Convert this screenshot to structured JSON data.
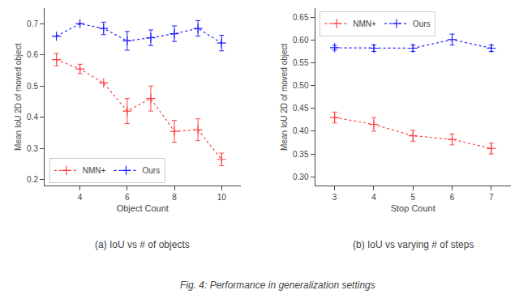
{
  "title": "Fig. 4: Performance in generalization settings",
  "chart_data": [
    {
      "type": "line",
      "title": "(a) IoU vs # of objects",
      "xlabel": "Object Count",
      "ylabel": "Mean IoU 2D of moved object",
      "x": [
        3,
        4,
        5,
        6,
        7,
        8,
        9,
        10
      ],
      "series": [
        {
          "name": "NMN+",
          "color": "#FF4444",
          "marker": "plus",
          "line_style": "dotted",
          "values": [
            0.585,
            0.555,
            0.51,
            0.42,
            0.46,
            0.355,
            0.36,
            0.265
          ],
          "yerr": [
            0.02,
            0.015,
            0.0,
            0.04,
            0.04,
            0.035,
            0.035,
            0.02
          ]
        },
        {
          "name": "Ours",
          "color": "#2222FF",
          "marker": "plus",
          "line_style": "dotted",
          "values": [
            0.66,
            0.7,
            0.685,
            0.645,
            0.655,
            0.668,
            0.685,
            0.638
          ],
          "yerr": [
            0.0,
            0.0,
            0.02,
            0.03,
            0.025,
            0.025,
            0.025,
            0.025
          ]
        }
      ],
      "xlim": [
        2.5,
        10.8
      ],
      "xticks": [
        4,
        6,
        8,
        10
      ],
      "ylim": [
        0.18,
        0.75
      ],
      "yticks": [
        0.2,
        0.3,
        0.4,
        0.5,
        0.6,
        0.7
      ],
      "grid": false,
      "legend": "lower left"
    },
    {
      "type": "line",
      "title": "(b) IoU vs varying # of steps",
      "xlabel": "Stop Count",
      "ylabel": "Mean IoU 2D of moved object",
      "x": [
        3,
        4,
        5,
        6,
        7
      ],
      "series": [
        {
          "name": "NMN+",
          "color": "#FF4444",
          "marker": "plus",
          "line_style": "dotted",
          "values": [
            0.43,
            0.415,
            0.39,
            0.382,
            0.362
          ],
          "yerr": [
            0.012,
            0.015,
            0.012,
            0.012,
            0.012
          ]
        },
        {
          "name": "Ours",
          "color": "#2222FF",
          "marker": "plus",
          "line_style": "dotted",
          "values": [
            0.583,
            0.582,
            0.582,
            0.601,
            0.582
          ],
          "yerr": [
            0.005,
            0.007,
            0.007,
            0.012,
            0.007
          ]
        }
      ],
      "xlim": [
        2.5,
        7.5
      ],
      "xticks": [
        3,
        4,
        5,
        6,
        7
      ],
      "ylim": [
        0.28,
        0.67
      ],
      "yticks": [
        {
          "value": 0.3,
          "label": "0.30"
        },
        0.35,
        {
          "value": 0.4,
          "label": "0.40"
        },
        0.45,
        {
          "value": 0.5,
          "label": "0.50"
        },
        0.55,
        {
          "value": 0.6,
          "label": "0.60"
        },
        0.65
      ],
      "grid": false,
      "legend": "upper left"
    }
  ]
}
